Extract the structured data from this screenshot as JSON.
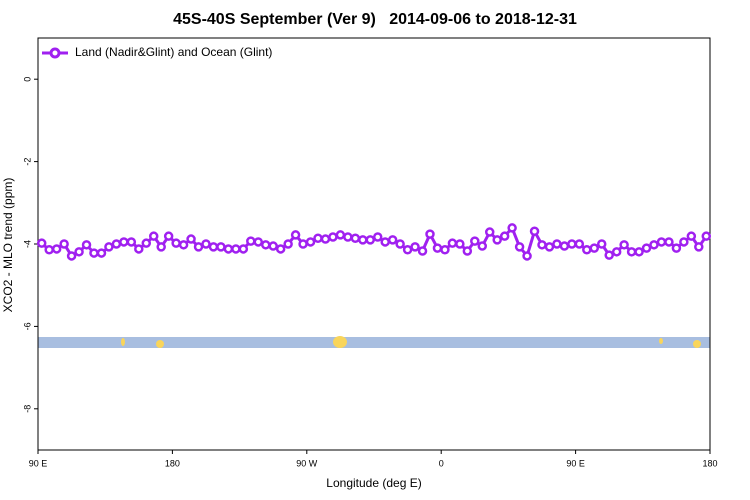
{
  "chart_data": {
    "type": "line",
    "title": "45S-40S September (Ver 9)   2014-09-06 to 2018-12-31",
    "xlabel": "Longitude (deg E)",
    "ylabel": "XCO2 - MLO trend (ppm)",
    "xlim": [
      90,
      540
    ],
    "ylim": [
      -9,
      1
    ],
    "xticks": [
      {
        "value": 90,
        "label": "90 E"
      },
      180,
      {
        "value": 270,
        "label": "90 W"
      },
      {
        "value": 360,
        "label": "0"
      },
      {
        "value": 450,
        "label": "90 E"
      },
      {
        "value": 540,
        "label": "180"
      }
    ],
    "yticks": [
      0,
      -2,
      -4,
      -6,
      -8
    ],
    "legend": "upper left",
    "x": [
      92.5,
      97.5,
      102.5,
      107.5,
      112.5,
      117.5,
      122.5,
      127.5,
      132.5,
      137.5,
      142.5,
      147.5,
      152.5,
      157.5,
      162.5,
      167.5,
      172.5,
      177.5,
      182.5,
      187.5,
      192.5,
      197.5,
      202.5,
      207.5,
      212.5,
      217.5,
      222.5,
      227.5,
      232.5,
      237.5,
      242.5,
      247.5,
      252.5,
      257.5,
      262.5,
      267.5,
      272.5,
      277.5,
      282.5,
      287.5,
      292.5,
      297.5,
      302.5,
      307.5,
      312.5,
      317.5,
      322.5,
      327.5,
      332.5,
      337.5,
      342.5,
      347.5,
      352.5,
      357.5,
      362.5,
      367.5,
      372.5,
      377.5,
      382.5,
      387.5,
      392.5,
      397.5,
      402.5,
      407.5,
      412.5,
      417.5,
      422.5,
      427.5,
      432.5,
      437.5,
      442.5,
      447.5,
      452.5,
      457.5,
      462.5,
      467.5,
      472.5,
      477.5,
      482.5,
      487.5,
      492.5,
      497.5,
      502.5,
      507.5,
      512.5,
      517.5,
      522.5,
      527.5,
      532.5,
      537.5
    ],
    "series": [
      {
        "name": "Land (Nadir&Glint) and Ocean (Glint)",
        "color": "#a020f0",
        "values": [
          -3.98,
          -4.14,
          -4.12,
          -4.0,
          -4.29,
          -4.19,
          -4.02,
          -4.22,
          -4.22,
          -4.07,
          -4.0,
          -3.95,
          -3.95,
          -4.12,
          -3.98,
          -3.81,
          -4.07,
          -3.81,
          -3.98,
          -4.02,
          -3.88,
          -4.07,
          -4.0,
          -4.07,
          -4.07,
          -4.12,
          -4.12,
          -4.12,
          -3.93,
          -3.95,
          -4.02,
          -4.05,
          -4.12,
          -4.0,
          -3.78,
          -4.0,
          -3.95,
          -3.86,
          -3.88,
          -3.83,
          -3.78,
          -3.83,
          -3.86,
          -3.9,
          -3.9,
          -3.83,
          -3.95,
          -3.9,
          -4.0,
          -4.14,
          -4.07,
          -4.17,
          -3.76,
          -4.1,
          -4.14,
          -3.98,
          -4.0,
          -4.17,
          -3.93,
          -4.05,
          -3.71,
          -3.9,
          -3.81,
          -3.61,
          -4.07,
          -4.29,
          -3.69,
          -4.02,
          -4.07,
          -4.0,
          -4.05,
          -4.0,
          -4.0,
          -4.14,
          -4.1,
          -4.0,
          -4.27,
          -4.19,
          -4.02,
          -4.19,
          -4.19,
          -4.1,
          -4.02,
          -3.95,
          -3.95,
          -4.1,
          -3.95,
          -3.81,
          -4.07,
          -3.81
        ]
      }
    ]
  }
}
